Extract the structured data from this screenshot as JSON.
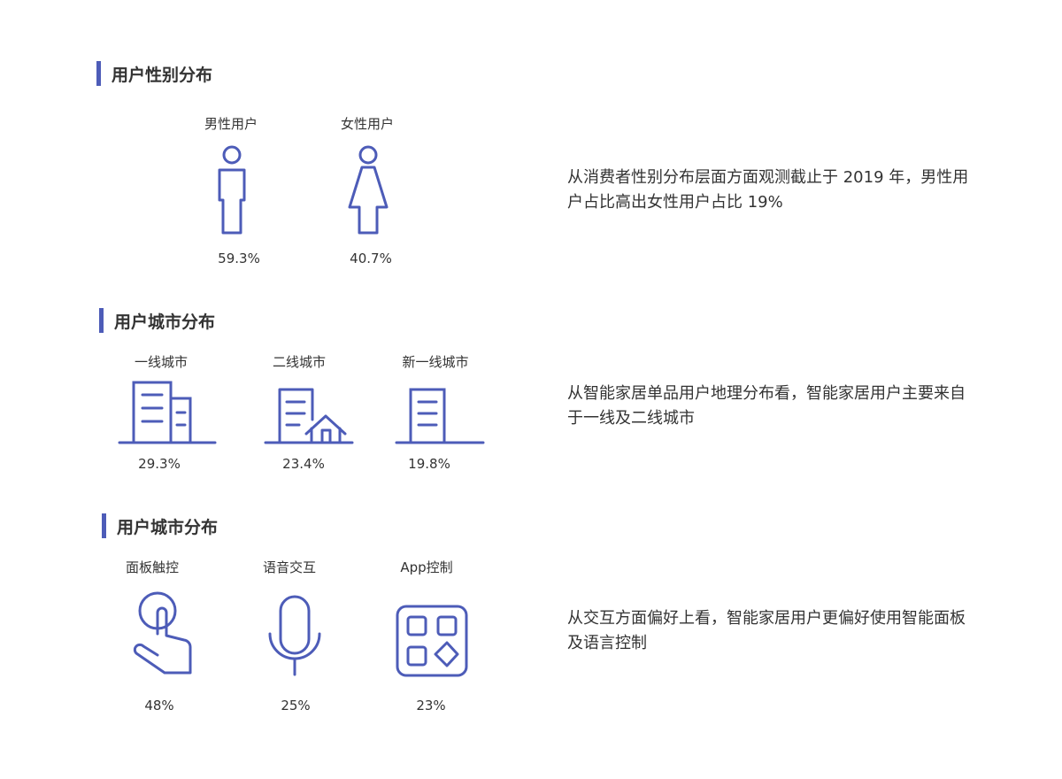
{
  "accent_color": "#4d5cb8",
  "sections": [
    {
      "title": "用户性别分布",
      "items": [
        {
          "label": "男性用户",
          "value": "59.3%",
          "icon": "male-user-icon"
        },
        {
          "label": "女性用户",
          "value": "40.7%",
          "icon": "female-user-icon"
        }
      ],
      "description": "从消费者性别分布层面方面观测截止于 2019 年，男性用户占比高出女性用户占比 19%"
    },
    {
      "title": "用户城市分布",
      "items": [
        {
          "label": "一线城市",
          "value": "29.3%",
          "icon": "tier1-city-buildings-icon"
        },
        {
          "label": "二线城市",
          "value": "23.4%",
          "icon": "tier2-city-building-house-icon"
        },
        {
          "label": "新一线城市",
          "value": "19.8%",
          "icon": "new-tier1-city-building-icon"
        }
      ],
      "description": "从智能家居单品用户地理分布看，智能家居用户主要来自于一线及二线城市"
    },
    {
      "title": "用户城市分布",
      "items": [
        {
          "label": "面板触控",
          "value": "48%",
          "icon": "touch-panel-hand-icon"
        },
        {
          "label": "语音交互",
          "value": "25%",
          "icon": "microphone-icon"
        },
        {
          "label": "App控制",
          "value": "23%",
          "icon": "app-grid-icon"
        }
      ],
      "description": "从交互方面偏好上看，智能家居用户更偏好使用智能面板及语言控制"
    }
  ]
}
